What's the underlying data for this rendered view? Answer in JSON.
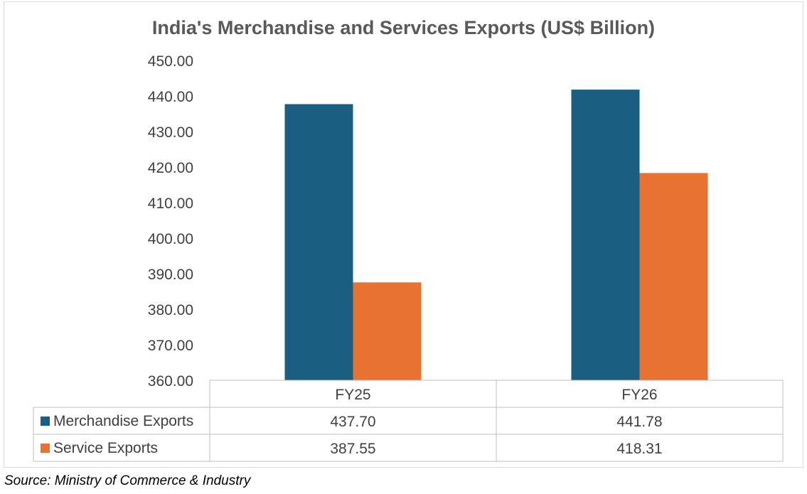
{
  "chart_data": {
    "type": "bar",
    "title": "India's Merchandise and Services Exports (US$ Billion)",
    "categories": [
      "FY25",
      "FY26"
    ],
    "series": [
      {
        "name": "Merchandise Exports",
        "values": [
          437.7,
          441.78
        ],
        "labels": [
          "437.70",
          "441.78"
        ],
        "color": "#1a5f82"
      },
      {
        "name": "Service Exports",
        "values": [
          387.55,
          418.31
        ],
        "labels": [
          "387.55",
          "418.31"
        ],
        "color": "#e87231"
      }
    ],
    "ylim": [
      360,
      450
    ],
    "yticks": [
      "360.00",
      "370.00",
      "380.00",
      "390.00",
      "400.00",
      "410.00",
      "420.00",
      "430.00",
      "440.00",
      "450.00"
    ],
    "grid": false,
    "legend": "data table"
  },
  "source": "Source: Ministry of Commerce & Industry"
}
